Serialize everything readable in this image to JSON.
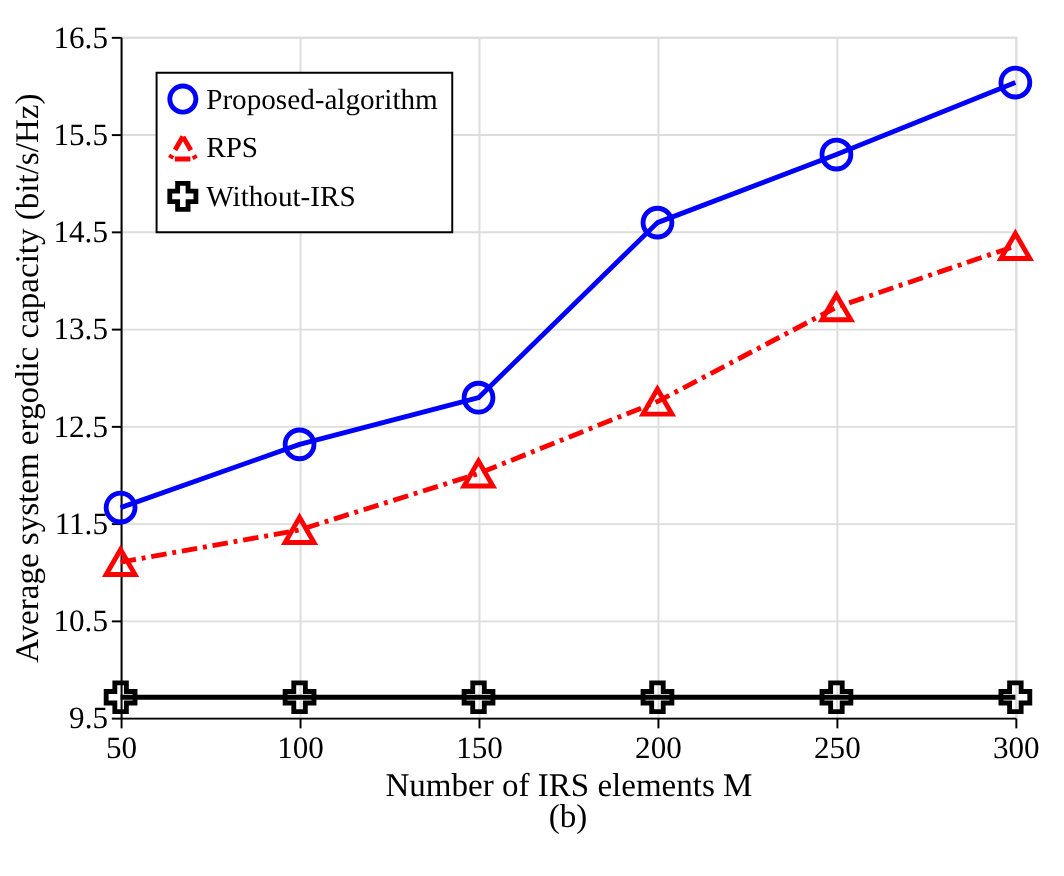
{
  "chart_data": {
    "type": "line",
    "xlabel": "Number of IRS elements M",
    "ylabel": "Average system ergodic capacity (bit/s/Hz)",
    "annotations": [
      "(b)"
    ],
    "x": [
      50,
      100,
      150,
      200,
      250,
      300
    ],
    "series": [
      {
        "name": "Proposed-algorithm",
        "color": "#0000ff",
        "marker": "circle",
        "line_style": "solid",
        "values": [
          11.66,
          12.31,
          12.79,
          14.59,
          15.29,
          16.03
        ]
      },
      {
        "name": "RPS",
        "color": "#ff0000",
        "marker": "triangle",
        "line_style": "dashed",
        "values": [
          11.1,
          11.43,
          12.01,
          12.75,
          13.72,
          14.35
        ]
      },
      {
        "name": "Without-IRS",
        "color": "#000000",
        "marker": "cross",
        "line_style": "solid",
        "values": [
          9.71,
          9.71,
          9.71,
          9.71,
          9.71,
          9.71
        ]
      }
    ],
    "xlim": [
      50,
      300
    ],
    "xticks": [
      50,
      100,
      150,
      200,
      250,
      300
    ],
    "ylim": [
      9.5,
      16.5
    ],
    "yticks": [
      9.5,
      10.5,
      11.5,
      12.5,
      13.5,
      14.5,
      15.5,
      16.5
    ],
    "grid": true,
    "legend": "top left"
  }
}
